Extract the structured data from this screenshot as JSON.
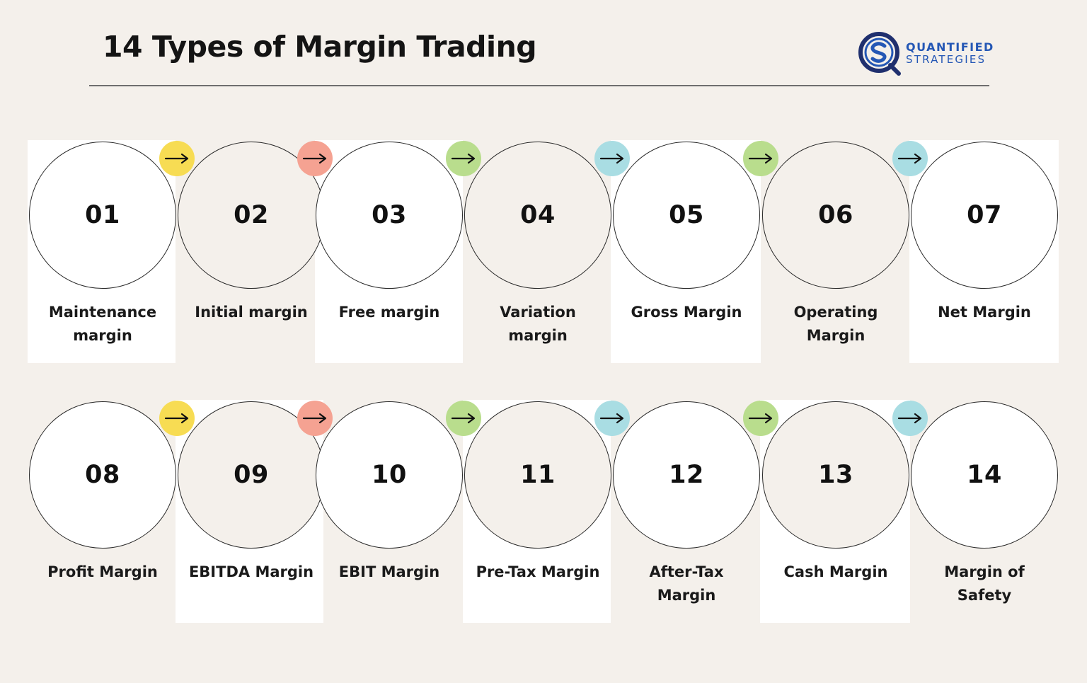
{
  "title": "14 Types of Margin Trading",
  "logo": {
    "line1": "QUANTIFIED",
    "line2": "STRATEGIES",
    "color": "#2457b5",
    "icon_dark": "#1f2f6e"
  },
  "colors": {
    "background": "#f4f0eb",
    "arrow_yellow": "#f7dc53",
    "arrow_salmon": "#f5a292",
    "arrow_green": "#b9dd8d",
    "arrow_blue": "#a9dde3"
  },
  "arrow_icon": "right-arrow-icon",
  "items": [
    {
      "number": "01",
      "label": "Maintenance margin"
    },
    {
      "number": "02",
      "label": "Initial margin"
    },
    {
      "number": "03",
      "label": "Free margin"
    },
    {
      "number": "04",
      "label": "Variation margin"
    },
    {
      "number": "05",
      "label": "Gross Margin"
    },
    {
      "number": "06",
      "label": "Operating Margin"
    },
    {
      "number": "07",
      "label": "Net Margin"
    },
    {
      "number": "08",
      "label": "Profit Margin"
    },
    {
      "number": "09",
      "label": "EBITDA Margin"
    },
    {
      "number": "10",
      "label": "EBIT Margin"
    },
    {
      "number": "11",
      "label": "Pre-Tax Margin"
    },
    {
      "number": "12",
      "label": "After-Tax Margin"
    },
    {
      "number": "13",
      "label": "Cash Margin"
    },
    {
      "number": "14",
      "label": "Margin of Safety"
    }
  ]
}
